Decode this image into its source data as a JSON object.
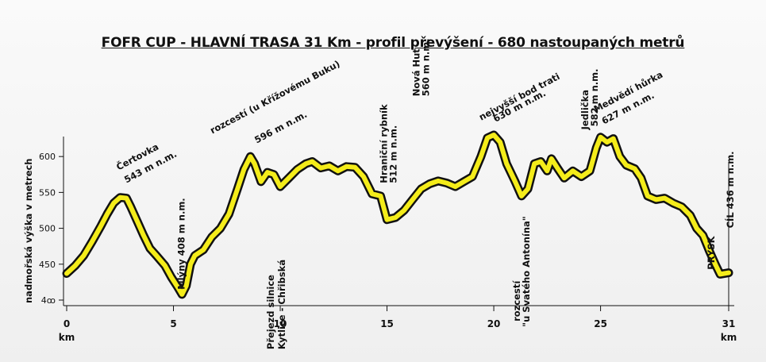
{
  "chart_data": {
    "type": "area",
    "title": "FOFR CUP - HLAVNÍ TRASA 31 Km - profil převýšení - 680 nastoupaných metrů",
    "xlabel": "km",
    "ylabel": "nadmořská výška v metrech",
    "xlim": [
      0,
      31
    ],
    "ylim": [
      400,
      640
    ],
    "x_ticks": [
      "0",
      "5",
      "10",
      "15",
      "20",
      "25",
      "31"
    ],
    "x_tick_values": [
      0,
      5,
      10,
      15,
      20,
      25,
      31
    ],
    "y_ticks": [
      "4ꝏ",
      "450",
      "500",
      "550",
      "600"
    ],
    "y_tick_values": [
      400,
      450,
      500,
      550,
      600
    ],
    "line_color": "#f4ec1a",
    "outline_color": "#111111",
    "points": [
      [
        0,
        437
      ],
      [
        0.4,
        448
      ],
      [
        0.8,
        462
      ],
      [
        1.2,
        482
      ],
      [
        1.6,
        503
      ],
      [
        1.9,
        520
      ],
      [
        2.2,
        535
      ],
      [
        2.5,
        543
      ],
      [
        2.8,
        542
      ],
      [
        3.0,
        530
      ],
      [
        3.3,
        510
      ],
      [
        3.6,
        490
      ],
      [
        3.9,
        472
      ],
      [
        4.2,
        462
      ],
      [
        4.6,
        448
      ],
      [
        4.9,
        432
      ],
      [
        5.2,
        418
      ],
      [
        5.4,
        408
      ],
      [
        5.6,
        420
      ],
      [
        5.8,
        450
      ],
      [
        6.0,
        462
      ],
      [
        6.4,
        470
      ],
      [
        6.8,
        488
      ],
      [
        7.2,
        500
      ],
      [
        7.6,
        520
      ],
      [
        8.0,
        555
      ],
      [
        8.3,
        582
      ],
      [
        8.6,
        600
      ],
      [
        8.8,
        590
      ],
      [
        9.1,
        565
      ],
      [
        9.4,
        578
      ],
      [
        9.7,
        575
      ],
      [
        10.0,
        558
      ],
      [
        10.4,
        570
      ],
      [
        10.8,
        582
      ],
      [
        11.2,
        590
      ],
      [
        11.5,
        593
      ],
      [
        11.9,
        584
      ],
      [
        12.3,
        587
      ],
      [
        12.7,
        580
      ],
      [
        13.1,
        586
      ],
      [
        13.5,
        585
      ],
      [
        13.9,
        572
      ],
      [
        14.3,
        548
      ],
      [
        14.7,
        545
      ],
      [
        15.0,
        512
      ],
      [
        15.4,
        515
      ],
      [
        15.8,
        525
      ],
      [
        16.2,
        540
      ],
      [
        16.6,
        555
      ],
      [
        17.0,
        562
      ],
      [
        17.4,
        566
      ],
      [
        17.8,
        563
      ],
      [
        18.2,
        558
      ],
      [
        18.6,
        565
      ],
      [
        19.0,
        572
      ],
      [
        19.4,
        600
      ],
      [
        19.7,
        626
      ],
      [
        20.0,
        630
      ],
      [
        20.3,
        620
      ],
      [
        20.6,
        590
      ],
      [
        21.0,
        565
      ],
      [
        21.3,
        545
      ],
      [
        21.6,
        555
      ],
      [
        21.9,
        590
      ],
      [
        22.2,
        593
      ],
      [
        22.5,
        580
      ],
      [
        22.7,
        597
      ],
      [
        23.0,
        583
      ],
      [
        23.3,
        570
      ],
      [
        23.7,
        580
      ],
      [
        24.1,
        572
      ],
      [
        24.5,
        580
      ],
      [
        24.8,
        612
      ],
      [
        25.0,
        627
      ],
      [
        25.3,
        620
      ],
      [
        25.6,
        625
      ],
      [
        25.9,
        600
      ],
      [
        26.2,
        588
      ],
      [
        26.6,
        583
      ],
      [
        26.9,
        570
      ],
      [
        27.2,
        545
      ],
      [
        27.6,
        540
      ],
      [
        28.0,
        542
      ],
      [
        28.4,
        535
      ],
      [
        28.8,
        530
      ],
      [
        29.2,
        518
      ],
      [
        29.5,
        500
      ],
      [
        29.8,
        490
      ],
      [
        30.1,
        468
      ],
      [
        30.4,
        448
      ],
      [
        30.6,
        436
      ],
      [
        31.0,
        438
      ]
    ],
    "annotations": [
      {
        "text": "Čertovka",
        "x": 2.5,
        "elev": 543,
        "angle": -28
      },
      {
        "text": "543 m n.m.",
        "x": 2.5,
        "elev": 543,
        "angle": -28
      },
      {
        "text": "Mlýny 408 m n.m.",
        "x": 5.4,
        "elev": 408,
        "angle": -90
      },
      {
        "text": "rozcestí (u Křížovému Buku)",
        "x": 8.6,
        "elev": 596,
        "angle": -28
      },
      {
        "text": "596 m n.m.",
        "x": 8.6,
        "elev": 596,
        "angle": -28
      },
      {
        "text": "Přejezd silnice",
        "x": 10.0,
        "elev": 558,
        "angle": -90
      },
      {
        "text": "Kytlice - Chřibská",
        "x": 10.0,
        "elev": 558,
        "angle": -90
      },
      {
        "text": "Hraniční rybník",
        "x": 15.0,
        "elev": 512,
        "angle": -90
      },
      {
        "text": "512 m n.m.",
        "x": 15.0,
        "elev": 512,
        "angle": -90
      },
      {
        "text": "Nová Huť",
        "x": 16.6,
        "elev": 560,
        "angle": -90
      },
      {
        "text": "560 m n.m.",
        "x": 16.6,
        "elev": 560,
        "angle": -90
      },
      {
        "text": "nejvyšší bod trati",
        "x": 20.0,
        "elev": 630,
        "angle": -28
      },
      {
        "text": "630 m n.m.",
        "x": 20.0,
        "elev": 630,
        "angle": -28
      },
      {
        "text": "rozcestí",
        "x": 21.3,
        "elev": 545,
        "angle": -90
      },
      {
        "text": "\"u Svatého Antonína\"",
        "x": 21.3,
        "elev": 545,
        "angle": -90
      },
      {
        "text": "Jedlička",
        "x": 24.5,
        "elev": 582,
        "angle": -90
      },
      {
        "text": "582 m n.m.",
        "x": 24.5,
        "elev": 582,
        "angle": -90
      },
      {
        "text": "Medvědí hůrka",
        "x": 25.3,
        "elev": 627,
        "angle": -28
      },
      {
        "text": "627 m  n.m.",
        "x": 25.3,
        "elev": 627,
        "angle": -28
      },
      {
        "text": "PRYSK",
        "x": 30.0,
        "elev": 470,
        "angle": -90
      },
      {
        "text": "CÍL  436 m n.m.",
        "x": 31.0,
        "elev": 436,
        "angle": -90
      }
    ]
  }
}
